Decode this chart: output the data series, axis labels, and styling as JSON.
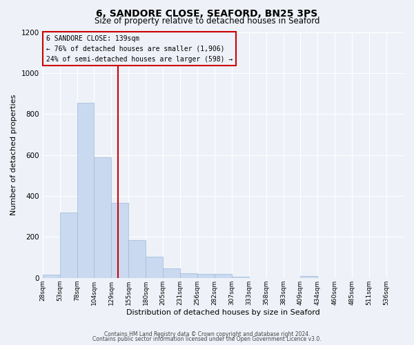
{
  "title1": "6, SANDORE CLOSE, SEAFORD, BN25 3PS",
  "title2": "Size of property relative to detached houses in Seaford",
  "xlabel": "Distribution of detached houses by size in Seaford",
  "ylabel": "Number of detached properties",
  "bin_labels": [
    "28sqm",
    "53sqm",
    "78sqm",
    "104sqm",
    "129sqm",
    "155sqm",
    "180sqm",
    "205sqm",
    "231sqm",
    "256sqm",
    "282sqm",
    "307sqm",
    "333sqm",
    "358sqm",
    "383sqm",
    "409sqm",
    "434sqm",
    "460sqm",
    "485sqm",
    "511sqm",
    "536sqm"
  ],
  "bar_values": [
    15,
    320,
    855,
    590,
    365,
    185,
    105,
    48,
    22,
    18,
    18,
    5,
    0,
    0,
    0,
    10,
    0,
    0,
    0,
    0,
    0
  ],
  "bar_color": "#c9d9f0",
  "bar_edgecolor": "#a0b8d8",
  "vline_color": "#cc0000",
  "vline_pos": 4.4,
  "annotation_title": "6 SANDORE CLOSE: 139sqm",
  "annotation_line1": "← 76% of detached houses are smaller (1,906)",
  "annotation_line2": "24% of semi-detached houses are larger (598) →",
  "annotation_box_edgecolor": "#cc0000",
  "ylim": [
    0,
    1200
  ],
  "yticks": [
    0,
    200,
    400,
    600,
    800,
    1000,
    1200
  ],
  "footer1": "Contains HM Land Registry data © Crown copyright and database right 2024.",
  "footer2": "Contains public sector information licensed under the Open Government Licence v3.0.",
  "background_color": "#eef2f8",
  "grid_color": "#ffffff"
}
